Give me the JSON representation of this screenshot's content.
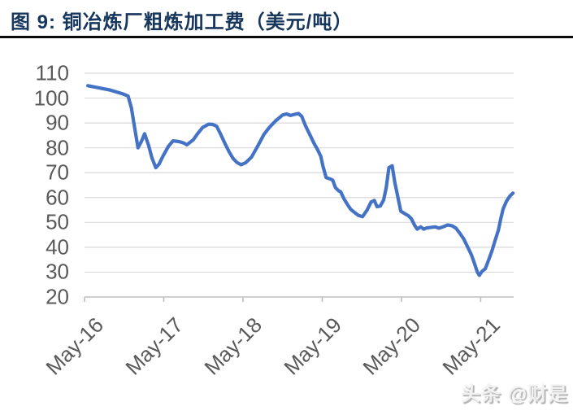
{
  "header": {
    "title": "图 9: 铜冶炼厂粗炼加工费（美元/吨）"
  },
  "watermark": "头条 @财是",
  "chart_data": {
    "type": "line",
    "title": "铜冶炼厂粗炼加工费（美元/吨）",
    "xlabel": "",
    "ylabel": "",
    "ylim": [
      20,
      110
    ],
    "y_tick_step": 10,
    "y_tick_labels": [
      "110",
      "100",
      "90",
      "80",
      "70",
      "60",
      "50",
      "40",
      "30",
      "20"
    ],
    "y_tick_values": [
      110,
      100,
      90,
      80,
      70,
      60,
      50,
      40,
      30,
      20
    ],
    "x_tick_labels": [
      "May-16",
      "May-17",
      "May-18",
      "May-19",
      "May-20",
      "May-21"
    ],
    "x_tick_months": [
      0,
      12,
      24,
      36,
      48,
      60
    ],
    "x_range_months": [
      0,
      65
    ],
    "grid": "horizontal",
    "legend": "none",
    "line_color": "#4472C4",
    "gridline_color": "#D9D9D9",
    "axis_color": "#BFBFBF",
    "label_color": "#595959",
    "series": [
      {
        "points": [
          [
            0.5,
            105.0
          ],
          [
            2.0,
            104.2
          ],
          [
            3.8,
            103.3
          ],
          [
            5.7,
            101.8
          ],
          [
            6.6,
            100.8
          ],
          [
            7.1,
            96.0
          ],
          [
            7.6,
            88.0
          ],
          [
            8.1,
            80.0
          ],
          [
            8.6,
            82.5
          ],
          [
            9.1,
            85.7
          ],
          [
            9.7,
            81.0
          ],
          [
            10.2,
            76.0
          ],
          [
            10.8,
            72.0
          ],
          [
            11.3,
            73.5
          ],
          [
            11.8,
            76.3
          ],
          [
            12.7,
            80.6
          ],
          [
            13.4,
            82.8
          ],
          [
            14.3,
            82.5
          ],
          [
            15.0,
            82.0
          ],
          [
            15.5,
            81.2
          ],
          [
            16.5,
            83.3
          ],
          [
            17.1,
            85.6
          ],
          [
            17.9,
            88.2
          ],
          [
            18.8,
            89.5
          ],
          [
            19.4,
            89.4
          ],
          [
            20.0,
            88.7
          ],
          [
            20.6,
            85.6
          ],
          [
            21.3,
            81.6
          ],
          [
            21.9,
            78.4
          ],
          [
            22.5,
            75.7
          ],
          [
            23.1,
            74.1
          ],
          [
            23.7,
            73.2
          ],
          [
            24.4,
            74.0
          ],
          [
            25.3,
            76.3
          ],
          [
            26.3,
            81.0
          ],
          [
            27.2,
            85.5
          ],
          [
            28.0,
            88.2
          ],
          [
            29.0,
            91.0
          ],
          [
            30.0,
            93.2
          ],
          [
            30.6,
            93.6
          ],
          [
            31.2,
            93.0
          ],
          [
            31.9,
            93.5
          ],
          [
            32.4,
            93.8
          ],
          [
            32.9,
            92.7
          ],
          [
            33.5,
            88.7
          ],
          [
            34.2,
            84.9
          ],
          [
            34.8,
            81.6
          ],
          [
            35.3,
            79.3
          ],
          [
            35.8,
            76.5
          ],
          [
            36.1,
            72.8
          ],
          [
            36.6,
            68.0
          ],
          [
            37.2,
            67.5
          ],
          [
            37.6,
            67.0
          ],
          [
            38.0,
            64.0
          ],
          [
            38.5,
            62.7
          ],
          [
            38.8,
            62.3
          ],
          [
            39.3,
            59.5
          ],
          [
            39.8,
            57.3
          ],
          [
            40.3,
            55.3
          ],
          [
            40.9,
            54.0
          ],
          [
            41.5,
            52.8
          ],
          [
            42.1,
            52.3
          ],
          [
            42.8,
            55.0
          ],
          [
            43.4,
            58.2
          ],
          [
            43.9,
            58.8
          ],
          [
            44.3,
            56.3
          ],
          [
            44.8,
            56.6
          ],
          [
            45.3,
            59.0
          ],
          [
            45.7,
            64.0
          ],
          [
            46.1,
            72.0
          ],
          [
            46.6,
            72.8
          ],
          [
            47.0,
            66.0
          ],
          [
            47.4,
            61.0
          ],
          [
            47.9,
            54.5
          ],
          [
            48.5,
            53.5
          ],
          [
            49.0,
            52.8
          ],
          [
            49.5,
            51.5
          ],
          [
            50.0,
            48.8
          ],
          [
            50.4,
            47.3
          ],
          [
            50.9,
            48.2
          ],
          [
            51.4,
            47.3
          ],
          [
            51.8,
            47.8
          ],
          [
            52.5,
            48.0
          ],
          [
            53.1,
            48.2
          ],
          [
            53.7,
            47.7
          ],
          [
            54.3,
            48.2
          ],
          [
            55.0,
            49.0
          ],
          [
            55.7,
            48.6
          ],
          [
            56.3,
            47.6
          ],
          [
            56.8,
            45.8
          ],
          [
            57.4,
            43.5
          ],
          [
            58.1,
            39.7
          ],
          [
            58.6,
            37.0
          ],
          [
            59.1,
            33.2
          ],
          [
            59.5,
            30.0
          ],
          [
            59.8,
            28.7
          ],
          [
            60.2,
            30.3
          ],
          [
            60.7,
            31.4
          ],
          [
            61.2,
            34.8
          ],
          [
            61.7,
            38.5
          ],
          [
            62.2,
            42.9
          ],
          [
            62.7,
            47.0
          ],
          [
            63.0,
            51.0
          ],
          [
            63.4,
            55.4
          ],
          [
            63.9,
            58.5
          ],
          [
            64.4,
            60.5
          ],
          [
            64.9,
            61.8
          ]
        ]
      }
    ]
  }
}
